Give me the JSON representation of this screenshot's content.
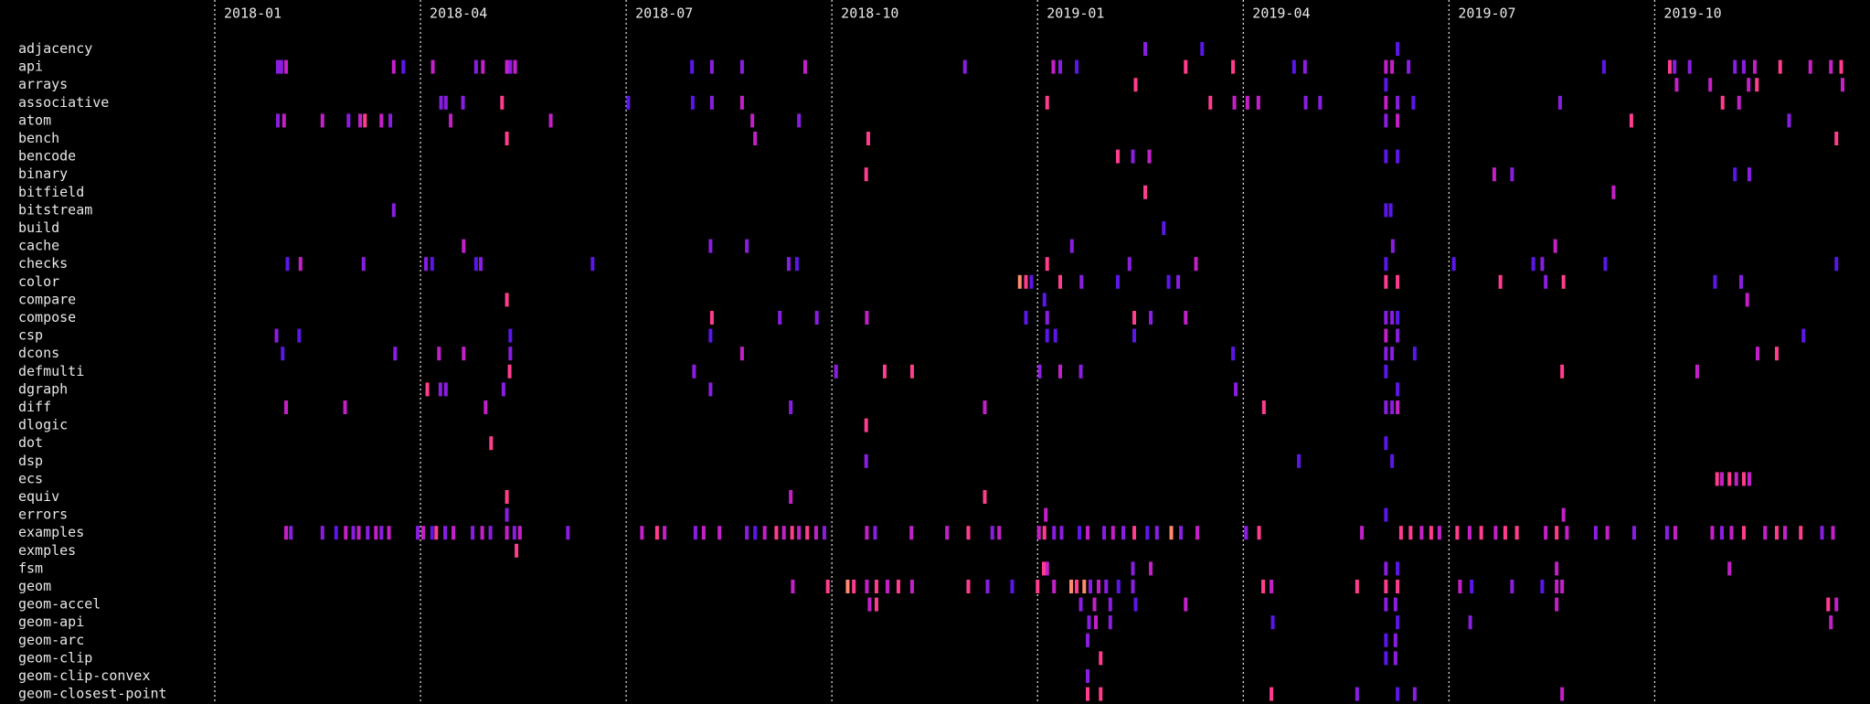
{
  "chart_data": {
    "type": "timeline",
    "xlim": [
      0,
      24.1
    ],
    "xticks": [
      {
        "value": 0,
        "label": "2018-01"
      },
      {
        "value": 3,
        "label": "2018-04"
      },
      {
        "value": 6,
        "label": "2018-07"
      },
      {
        "value": 9,
        "label": "2018-10"
      },
      {
        "value": 12,
        "label": "2019-01"
      },
      {
        "value": 15,
        "label": "2019-04"
      },
      {
        "value": 18,
        "label": "2019-07"
      },
      {
        "value": 21,
        "label": "2019-10"
      }
    ],
    "grid": true,
    "series": [
      {
        "name": "adjacency",
        "x": [
          13.57,
          14.4,
          17.25
        ],
        "colors": [
          "#8a1ee0",
          "#5b16e8",
          "#5b16e8"
        ]
      },
      {
        "name": "api",
        "x": [
          0.92,
          0.97,
          1.04,
          2.61,
          2.75,
          3.18,
          3.81,
          3.91,
          4.26,
          4.31,
          4.38,
          6.96,
          7.25,
          7.69,
          8.61,
          10.94,
          12.23,
          12.33,
          12.57,
          14.16,
          14.85,
          15.74,
          15.9,
          17.08,
          17.17,
          17.41,
          20.26,
          21.22,
          21.29,
          21.51,
          22.17,
          22.3,
          22.46,
          22.83,
          23.27,
          23.57,
          23.72
        ],
        "colors": [
          "#8a1ee0",
          "#8a1ee0",
          "#c420c8",
          "#c420c8",
          "#5b16e8",
          "#c420c8",
          "#8a1ee0",
          "#c420c8",
          "#c420c8",
          "#8a1ee0",
          "#c420c8",
          "#5b16e8",
          "#8a1ee0",
          "#8a1ee0",
          "#c420c8",
          "#8a1ee0",
          "#c420c8",
          "#8a1ee0",
          "#5b16e8",
          "#ff3d8c",
          "#ff3d8c",
          "#5b16e8",
          "#8a1ee0",
          "#c420c8",
          "#c420c8",
          "#8a1ee0",
          "#5b16e8",
          "#ff3d8c",
          "#8a1ee0",
          "#8a1ee0",
          "#8a1ee0",
          "#8a1ee0",
          "#c420c8",
          "#ff3d8c",
          "#c420c8",
          "#c420c8",
          "#ff3d8c"
        ]
      },
      {
        "name": "arrays",
        "x": [
          13.43,
          17.08,
          21.32,
          21.81,
          22.37,
          22.49,
          23.74
        ],
        "colors": [
          "#ff3d8c",
          "#5b16e8",
          "#c420c8",
          "#c420c8",
          "#c420c8",
          "#ff3d8c",
          "#c420c8"
        ]
      },
      {
        "name": "associative",
        "x": [
          3.3,
          3.37,
          3.62,
          4.19,
          6.03,
          6.97,
          7.25,
          7.69,
          12.14,
          14.52,
          14.87,
          15.06,
          15.22,
          15.91,
          16.12,
          17.08,
          17.25,
          17.48,
          19.62,
          21.99,
          22.23
        ],
        "colors": [
          "#8a1ee0",
          "#8a1ee0",
          "#8a1ee0",
          "#ff3d8c",
          "#5b16e8",
          "#5b16e8",
          "#8a1ee0",
          "#c420c8",
          "#ff3d8c",
          "#ff3d8c",
          "#c420c8",
          "#c420c8",
          "#c420c8",
          "#8a1ee0",
          "#8a1ee0",
          "#c420c8",
          "#8a1ee0",
          "#5b16e8",
          "#8a1ee0",
          "#ff3d8c",
          "#c420c8"
        ]
      },
      {
        "name": "atom",
        "x": [
          0.92,
          1.01,
          1.57,
          1.95,
          2.12,
          2.19,
          2.43,
          2.56,
          3.44,
          4.9,
          7.84,
          8.52,
          17.08,
          17.25,
          20.66,
          22.96
        ],
        "colors": [
          "#8a1ee0",
          "#c420c8",
          "#c420c8",
          "#8a1ee0",
          "#c420c8",
          "#ff3d8c",
          "#c420c8",
          "#8a1ee0",
          "#c420c8",
          "#c420c8",
          "#c420c8",
          "#8a1ee0",
          "#8a1ee0",
          "#c420c8",
          "#ff3d8c",
          "#8a1ee0"
        ]
      },
      {
        "name": "bench",
        "x": [
          4.26,
          7.88,
          9.53,
          23.65
        ],
        "colors": [
          "#ff3d8c",
          "#c420c8",
          "#ff3d8c",
          "#ff3d8c"
        ]
      },
      {
        "name": "bencode",
        "x": [
          13.17,
          13.39,
          13.63,
          17.08,
          17.25
        ],
        "colors": [
          "#ff3d8c",
          "#8a1ee0",
          "#c420c8",
          "#5b16e8",
          "#5b16e8"
        ]
      },
      {
        "name": "binary",
        "x": [
          9.5,
          18.66,
          18.92,
          22.17,
          22.38
        ],
        "colors": [
          "#ff3d8c",
          "#c420c8",
          "#8a1ee0",
          "#5b16e8",
          "#8a1ee0"
        ]
      },
      {
        "name": "bitfield",
        "x": [
          13.57,
          20.4
        ],
        "colors": [
          "#ff3d8c",
          "#c420c8"
        ]
      },
      {
        "name": "bitstream",
        "x": [
          2.61,
          17.08,
          17.15
        ],
        "colors": [
          "#8a1ee0",
          "#5b16e8",
          "#5b16e8"
        ]
      },
      {
        "name": "build",
        "x": [
          13.84
        ],
        "colors": [
          "#5b16e8"
        ]
      },
      {
        "name": "cache",
        "x": [
          3.63,
          7.23,
          7.76,
          12.5,
          17.18,
          19.55
        ],
        "colors": [
          "#c420c8",
          "#8a1ee0",
          "#8a1ee0",
          "#8a1ee0",
          "#8a1ee0",
          "#c420c8"
        ]
      },
      {
        "name": "checks",
        "x": [
          1.06,
          1.25,
          2.17,
          3.08,
          3.17,
          3.81,
          3.88,
          5.51,
          8.37,
          8.49,
          12.14,
          13.34,
          14.31,
          17.08,
          18.07,
          19.23,
          19.36,
          20.28,
          23.65
        ],
        "colors": [
          "#5b16e8",
          "#c420c8",
          "#8a1ee0",
          "#8a1ee0",
          "#5b16e8",
          "#5b16e8",
          "#8a1ee0",
          "#5b16e8",
          "#8a1ee0",
          "#5b16e8",
          "#ff3d8c",
          "#8a1ee0",
          "#c420c8",
          "#5b16e8",
          "#5b16e8",
          "#5b16e8",
          "#8a1ee0",
          "#5b16e8",
          "#5b16e8"
        ]
      },
      {
        "name": "color",
        "x": [
          11.74,
          11.83,
          11.91,
          12.33,
          12.64,
          13.17,
          13.91,
          14.05,
          17.08,
          17.25,
          18.75,
          19.41,
          19.67,
          21.88,
          22.26
        ],
        "colors": [
          "#ff8a6e",
          "#ff3d8c",
          "#5b16e8",
          "#ff3d8c",
          "#8a1ee0",
          "#5b16e8",
          "#5b16e8",
          "#8a1ee0",
          "#ff3d8c",
          "#ff3d8c",
          "#ff3d8c",
          "#8a1ee0",
          "#ff3d8c",
          "#5b16e8",
          "#8a1ee0"
        ]
      },
      {
        "name": "compare",
        "x": [
          4.26,
          12.1,
          22.35
        ],
        "colors": [
          "#ff3d8c",
          "#5b16e8",
          "#c420c8"
        ]
      },
      {
        "name": "compose",
        "x": [
          7.25,
          8.24,
          8.78,
          9.51,
          11.83,
          12.14,
          13.41,
          13.65,
          14.16,
          17.08,
          17.17,
          17.25
        ],
        "colors": [
          "#ff3d8c",
          "#8a1ee0",
          "#8a1ee0",
          "#c420c8",
          "#5b16e8",
          "#8a1ee0",
          "#ff3d8c",
          "#8a1ee0",
          "#c420c8",
          "#8a1ee0",
          "#8a1ee0",
          "#5b16e8"
        ]
      },
      {
        "name": "csp",
        "x": [
          0.9,
          1.23,
          4.31,
          7.23,
          12.14,
          12.26,
          13.41,
          17.08,
          17.25,
          23.17
        ],
        "colors": [
          "#8a1ee0",
          "#5b16e8",
          "#5b16e8",
          "#5b16e8",
          "#5b16e8",
          "#5b16e8",
          "#5b16e8",
          "#c420c8",
          "#8a1ee0",
          "#5b16e8"
        ]
      },
      {
        "name": "dcons",
        "x": [
          0.99,
          2.63,
          3.27,
          3.63,
          4.31,
          7.69,
          14.85,
          17.08,
          17.17,
          17.5,
          22.5,
          22.78
        ],
        "colors": [
          "#5b16e8",
          "#8a1ee0",
          "#c420c8",
          "#c420c8",
          "#8a1ee0",
          "#c420c8",
          "#5b16e8",
          "#8a1ee0",
          "#8a1ee0",
          "#5b16e8",
          "#c420c8",
          "#ff3d8c"
        ]
      },
      {
        "name": "defmulti",
        "x": [
          4.3,
          6.99,
          9.06,
          9.77,
          10.17,
          12.03,
          12.33,
          12.63,
          17.08,
          19.65,
          21.62
        ],
        "colors": [
          "#ff3d8c",
          "#8a1ee0",
          "#8a1ee0",
          "#ff3d8c",
          "#ff3d8c",
          "#8a1ee0",
          "#c420c8",
          "#8a1ee0",
          "#5b16e8",
          "#ff3d8c",
          "#c420c8"
        ]
      },
      {
        "name": "dgraph",
        "x": [
          3.1,
          3.29,
          3.37,
          4.21,
          7.23,
          14.89,
          17.25
        ],
        "colors": [
          "#ff3d8c",
          "#8a1ee0",
          "#8a1ee0",
          "#8a1ee0",
          "#8a1ee0",
          "#8a1ee0",
          "#5b16e8"
        ]
      },
      {
        "name": "diff",
        "x": [
          1.04,
          1.9,
          3.95,
          8.4,
          11.23,
          15.3,
          17.08,
          17.17,
          17.25
        ],
        "colors": [
          "#c420c8",
          "#c420c8",
          "#c420c8",
          "#8a1ee0",
          "#c420c8",
          "#ff3d8c",
          "#8a1ee0",
          "#8a1ee0",
          "#c420c8"
        ]
      },
      {
        "name": "dlogic",
        "x": [
          9.5
        ],
        "colors": [
          "#ff3d8c"
        ]
      },
      {
        "name": "dot",
        "x": [
          4.03,
          17.08
        ],
        "colors": [
          "#ff3d8c",
          "#5b16e8"
        ]
      },
      {
        "name": "dsp",
        "x": [
          9.5,
          15.81,
          17.17
        ],
        "colors": [
          "#8a1ee0",
          "#5b16e8",
          "#5b16e8"
        ]
      },
      {
        "name": "ecs",
        "x": [
          21.91,
          21.98,
          22.09,
          22.19,
          22.3,
          22.38
        ],
        "colors": [
          "#ff3d8c",
          "#c420c8",
          "#ff3d8c",
          "#c420c8",
          "#ff3d8c",
          "#c420c8"
        ]
      },
      {
        "name": "equiv",
        "x": [
          4.26,
          8.4,
          11.23
        ],
        "colors": [
          "#ff3d8c",
          "#c420c8",
          "#ff3d8c"
        ]
      },
      {
        "name": "errors",
        "x": [
          4.26,
          12.12,
          17.08,
          19.67
        ],
        "colors": [
          "#8a1ee0",
          "#c420c8",
          "#5b16e8",
          "#c420c8"
        ]
      },
      {
        "name": "examples",
        "x": [
          1.04,
          1.11,
          1.57,
          1.77,
          1.91,
          2.02,
          2.1,
          2.23,
          2.35,
          2.43,
          2.54,
          2.96,
          3.04,
          3.17,
          3.23,
          3.36,
          3.48,
          3.76,
          3.9,
          4.02,
          4.26,
          4.37,
          4.45,
          5.15,
          6.23,
          6.45,
          6.56,
          7.01,
          7.13,
          7.36,
          7.76,
          7.88,
          8.02,
          8.19,
          8.3,
          8.42,
          8.52,
          8.64,
          8.77,
          8.89,
          9.51,
          9.63,
          10.16,
          10.68,
          10.99,
          11.34,
          11.44,
          12.02,
          12.1,
          12.24,
          12.35,
          12.61,
          12.73,
          12.97,
          13.1,
          13.25,
          13.41,
          13.6,
          13.74,
          13.95,
          14.09,
          14.33,
          15.04,
          15.23,
          16.73,
          17.3,
          17.44,
          17.6,
          17.74,
          17.86,
          18.12,
          18.3,
          18.47,
          18.68,
          18.82,
          18.99,
          19.41,
          19.57,
          19.72,
          20.14,
          20.31,
          20.7,
          21.18,
          21.3,
          21.84,
          21.98,
          22.12,
          22.3,
          22.61,
          22.78,
          22.9,
          23.13,
          23.44,
          23.6
        ],
        "colors": [
          "#c420c8",
          "#8a1ee0",
          "#8a1ee0",
          "#5b16e8",
          "#c420c8",
          "#8a1ee0",
          "#c420c8",
          "#8a1ee0",
          "#c420c8",
          "#8a1ee0",
          "#c420c8",
          "#8a1ee0",
          "#c420c8",
          "#5b16e8",
          "#ff3d8c",
          "#8a1ee0",
          "#c420c8",
          "#8a1ee0",
          "#c420c8",
          "#8a1ee0",
          "#c420c8",
          "#8a1ee0",
          "#c420c8",
          "#8a1ee0",
          "#c420c8",
          "#ff3d8c",
          "#c420c8",
          "#8a1ee0",
          "#c420c8",
          "#c420c8",
          "#8a1ee0",
          "#5b16e8",
          "#c420c8",
          "#ff3d8c",
          "#c420c8",
          "#ff3d8c",
          "#c420c8",
          "#ff3d8c",
          "#c420c8",
          "#8a1ee0",
          "#c420c8",
          "#8a1ee0",
          "#c420c8",
          "#c420c8",
          "#ff3d8c",
          "#8a1ee0",
          "#c420c8",
          "#c420c8",
          "#ff3d8c",
          "#8a1ee0",
          "#8a1ee0",
          "#5b16e8",
          "#c420c8",
          "#8a1ee0",
          "#c420c8",
          "#8a1ee0",
          "#ff3d8c",
          "#5b16e8",
          "#8a1ee0",
          "#ff8a6e",
          "#8a1ee0",
          "#c420c8",
          "#8a1ee0",
          "#ff3d8c",
          "#c420c8",
          "#ff3d8c",
          "#ff3d8c",
          "#c420c8",
          "#ff3d8c",
          "#c420c8",
          "#ff3d8c",
          "#c420c8",
          "#ff3d8c",
          "#c420c8",
          "#ff3d8c",
          "#ff3d8c",
          "#c420c8",
          "#ff3d8c",
          "#c420c8",
          "#8a1ee0",
          "#c420c8",
          "#8a1ee0",
          "#8a1ee0",
          "#c420c8",
          "#c420c8",
          "#8a1ee0",
          "#c420c8",
          "#ff3d8c",
          "#c420c8",
          "#ff3d8c",
          "#c420c8",
          "#ff3d8c",
          "#8a1ee0",
          "#c420c8"
        ]
      },
      {
        "name": "exmples",
        "x": [
          4.4
        ],
        "colors": [
          "#ff3d8c"
        ]
      },
      {
        "name": "fsm",
        "x": [
          12.09,
          12.14,
          13.39,
          13.65,
          17.08,
          17.25,
          19.57,
          22.09
        ],
        "colors": [
          "#ff3d8c",
          "#c420c8",
          "#8a1ee0",
          "#c420c8",
          "#8a1ee0",
          "#5b16e8",
          "#c420c8",
          "#c420c8"
        ]
      },
      {
        "name": "geom",
        "x": [
          8.43,
          8.94,
          9.23,
          9.32,
          9.51,
          9.65,
          9.81,
          9.97,
          10.17,
          10.99,
          11.27,
          11.63,
          12.0,
          12.24,
          12.49,
          12.57,
          12.68,
          12.77,
          12.89,
          13.0,
          13.18,
          13.39,
          15.29,
          15.41,
          16.66,
          17.08,
          17.25,
          18.16,
          18.33,
          18.92,
          19.36,
          19.57,
          19.65
        ],
        "colors": [
          "#c420c8",
          "#ff3d8c",
          "#ff8a6e",
          "#ff3d8c",
          "#c420c8",
          "#ff3d8c",
          "#c420c8",
          "#ff3d8c",
          "#c420c8",
          "#ff3d8c",
          "#8a1ee0",
          "#5b16e8",
          "#ff3d8c",
          "#c420c8",
          "#ff8a6e",
          "#ff3d8c",
          "#ff8a6e",
          "#8a1ee0",
          "#c420c8",
          "#8a1ee0",
          "#5b16e8",
          "#8a1ee0",
          "#ff3d8c",
          "#c420c8",
          "#ff3d8c",
          "#ff3d8c",
          "#ff3d8c",
          "#c420c8",
          "#5b16e8",
          "#8a1ee0",
          "#5b16e8",
          "#c420c8",
          "#c420c8"
        ]
      },
      {
        "name": "geom-accel",
        "x": [
          9.55,
          9.65,
          12.63,
          12.83,
          13.06,
          13.43,
          14.16,
          17.08,
          17.22,
          19.57,
          23.53,
          23.65
        ],
        "colors": [
          "#c420c8",
          "#ff3d8c",
          "#8a1ee0",
          "#c420c8",
          "#8a1ee0",
          "#5b16e8",
          "#c420c8",
          "#8a1ee0",
          "#8a1ee0",
          "#c420c8",
          "#ff3d8c",
          "#c420c8"
        ]
      },
      {
        "name": "geom-api",
        "x": [
          12.75,
          12.85,
          13.06,
          15.43,
          17.25,
          18.31,
          23.57
        ],
        "colors": [
          "#8a1ee0",
          "#c420c8",
          "#8a1ee0",
          "#5b16e8",
          "#5b16e8",
          "#8a1ee0",
          "#c420c8"
        ]
      },
      {
        "name": "geom-arc",
        "x": [
          12.73,
          17.08,
          17.22
        ],
        "colors": [
          "#8a1ee0",
          "#5b16e8",
          "#8a1ee0"
        ]
      },
      {
        "name": "geom-clip",
        "x": [
          12.92,
          17.08,
          17.22
        ],
        "colors": [
          "#ff3d8c",
          "#5b16e8",
          "#8a1ee0"
        ]
      },
      {
        "name": "geom-clip-convex",
        "x": [
          12.73
        ],
        "colors": [
          "#8a1ee0"
        ]
      },
      {
        "name": "geom-closest-point",
        "x": [
          12.73,
          12.92,
          15.41,
          16.66,
          17.25,
          17.5,
          19.65
        ],
        "colors": [
          "#ff3d8c",
          "#ff3d8c",
          "#ff3d8c",
          "#8a1ee0",
          "#5b16e8",
          "#8a1ee0",
          "#c420c8"
        ]
      }
    ]
  }
}
